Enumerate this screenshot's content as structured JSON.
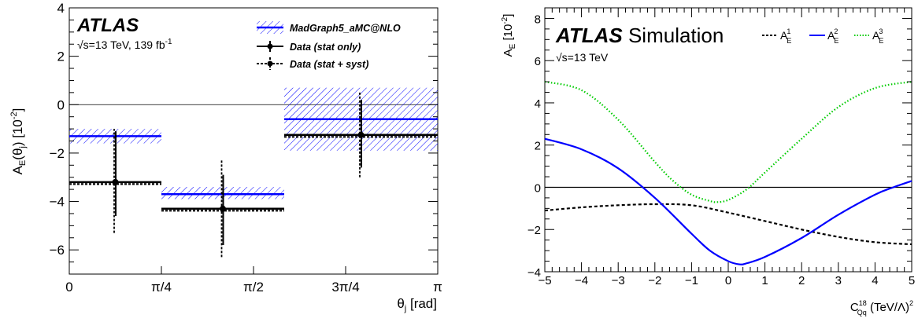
{
  "chart_data": [
    {
      "type": "bar",
      "panel": "left",
      "experiment": "ATLAS",
      "conditions": "√s=13 TeV, 139 fb",
      "conditions_sup": "-1",
      "ylabel_main": "A",
      "ylabel_sub": "E",
      "ylabel_arg": "(θ",
      "ylabel_arg_sub": "j",
      "ylabel_unit": ") [10",
      "ylabel_unit_sup": "-2",
      "ylabel_close": "]",
      "xlabel_main": "θ",
      "xlabel_sub": "j",
      "xlabel_unit": " [rad]",
      "xlim": [
        0,
        3.14159
      ],
      "ylim": [
        -7,
        4
      ],
      "xticks": [
        {
          "v": 0,
          "label": "0"
        },
        {
          "v": 0.7854,
          "label": "π/4"
        },
        {
          "v": 1.5708,
          "label": "π/2"
        },
        {
          "v": 2.3562,
          "label": "3π/4"
        },
        {
          "v": 3.14159,
          "label": "π"
        }
      ],
      "yticks": [
        {
          "v": 4,
          "label": "4"
        },
        {
          "v": 2,
          "label": "2"
        },
        {
          "v": 0,
          "label": "0"
        },
        {
          "v": -2,
          "label": "−2"
        },
        {
          "v": -4,
          "label": "−4"
        },
        {
          "v": -6,
          "label": "−6"
        }
      ],
      "legend": [
        {
          "label": "MadGraph5_aMC@NLO",
          "color": "#0000ff"
        },
        {
          "label": "Data (stat only)",
          "color": "#000000"
        },
        {
          "label": "Data (stat + syst)",
          "color": "#000000"
        }
      ],
      "bins": [
        {
          "x0": 0,
          "x1": 0.7854,
          "x": 0.3927,
          "mc": -1.3,
          "mc_band": [
            -1.6,
            -1.0
          ],
          "data": -3.2,
          "stat": [
            -4.6,
            -1.1
          ],
          "syst": [
            -5.3,
            -1.0
          ]
        },
        {
          "x0": 0.7854,
          "x1": 1.8326,
          "x": 1.309,
          "mc": -3.7,
          "mc_band": [
            -3.9,
            -3.4
          ],
          "data": -4.3,
          "stat": [
            -5.8,
            -2.9
          ],
          "syst": [
            -6.3,
            -2.3
          ]
        },
        {
          "x0": 1.8326,
          "x1": 3.14159,
          "x": 2.4871,
          "mc": -0.6,
          "mc_band": [
            -1.9,
            0.7
          ],
          "data": -1.25,
          "stat": [
            -2.6,
            0.2
          ],
          "syst": [
            -3.0,
            0.5
          ]
        }
      ]
    },
    {
      "type": "line",
      "panel": "right",
      "experiment": "ATLAS",
      "experiment_suffix": " Simulation",
      "conditions": "√s=13 TeV",
      "ylabel_main": "A",
      "ylabel_sub": "E",
      "ylabel_unit": " [10",
      "ylabel_unit_sup": "-2",
      "ylabel_close": "]",
      "xlabel_main": "C",
      "xlabel_sup": "18",
      "xlabel_sub": "Qq",
      "xlabel_unit": " (TeV/Λ)",
      "xlabel_unit_sup": "2",
      "xlim": [
        -5,
        5
      ],
      "ylim": [
        -4,
        8.5
      ],
      "xticks": [
        {
          "v": -5,
          "label": "−5"
        },
        {
          "v": -4,
          "label": "−4"
        },
        {
          "v": -3,
          "label": "−3"
        },
        {
          "v": -2,
          "label": "−2"
        },
        {
          "v": -1,
          "label": "−1"
        },
        {
          "v": 0,
          "label": "0"
        },
        {
          "v": 1,
          "label": "1"
        },
        {
          "v": 2,
          "label": "2"
        },
        {
          "v": 3,
          "label": "3"
        },
        {
          "v": 4,
          "label": "4"
        },
        {
          "v": 5,
          "label": "5"
        }
      ],
      "yticks": [
        {
          "v": 8,
          "label": "8"
        },
        {
          "v": 6,
          "label": "6"
        },
        {
          "v": 4,
          "label": "4"
        },
        {
          "v": 2,
          "label": "2"
        },
        {
          "v": 0,
          "label": "0"
        },
        {
          "v": -2,
          "label": "−2"
        },
        {
          "v": -4,
          "label": "−4"
        }
      ],
      "series": [
        {
          "name": "A",
          "sup": "1",
          "sub": "E",
          "color": "#000000",
          "style": "dashed",
          "x": [
            -5,
            -4,
            -3,
            -2,
            -1,
            0,
            1,
            2,
            3,
            4,
            5
          ],
          "y": [
            -1.1,
            -0.95,
            -0.85,
            -0.8,
            -0.85,
            -1.2,
            -1.6,
            -2.0,
            -2.35,
            -2.6,
            -2.7
          ]
        },
        {
          "name": "A",
          "sup": "2",
          "sub": "E",
          "color": "#0000ff",
          "style": "solid",
          "x": [
            -5,
            -4,
            -3,
            -2,
            -1,
            -0.5,
            0,
            0.3,
            0.5,
            1,
            2,
            3,
            4,
            4.5,
            5
          ],
          "y": [
            2.3,
            1.8,
            0.9,
            -0.5,
            -2.2,
            -3.0,
            -3.5,
            -3.65,
            -3.6,
            -3.3,
            -2.4,
            -1.3,
            -0.35,
            0.0,
            0.3
          ]
        },
        {
          "name": "A",
          "sup": "3",
          "sub": "E",
          "color": "#00cc00",
          "style": "dotted",
          "x": [
            -5,
            -4,
            -3,
            -2,
            -1.5,
            -1,
            -0.5,
            -0.3,
            0,
            0.5,
            1,
            2,
            3,
            4,
            5
          ],
          "y": [
            5.0,
            4.6,
            3.2,
            1.2,
            0.3,
            -0.35,
            -0.65,
            -0.7,
            -0.6,
            -0.1,
            0.7,
            2.3,
            3.8,
            4.7,
            5.0
          ]
        }
      ]
    }
  ]
}
